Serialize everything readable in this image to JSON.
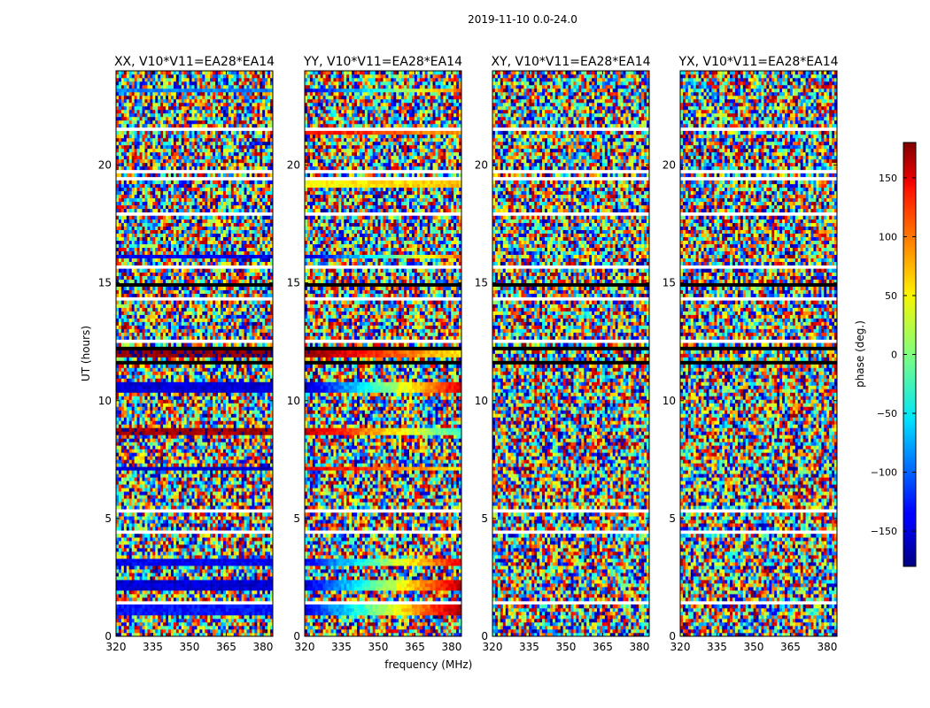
{
  "figure": {
    "suptitle": "2019-11-10 0.0-24.0"
  },
  "chart_data": [
    {
      "type": "heatmap",
      "title": "XX, V10*V11=EA28*EA14",
      "xlabel": "",
      "ylabel": "UT (hours)",
      "xlim": [
        320,
        384
      ],
      "ylim": [
        0,
        24
      ],
      "xticks": [
        "320",
        "335",
        "350",
        "365",
        "380"
      ],
      "yticks": [
        "0",
        "5",
        "10",
        "15",
        "20"
      ],
      "description_pattern": "noise",
      "coherent_bands": [
        {
          "t0": 0.9,
          "t1": 1.35,
          "phase": -130,
          "slope": 0
        },
        {
          "t0": 1.9,
          "t1": 2.4,
          "phase": -150,
          "slope": 0
        },
        {
          "t0": 3.05,
          "t1": 3.35,
          "phase": -140,
          "slope": 0
        },
        {
          "t0": 7.0,
          "t1": 7.25,
          "phase": -150,
          "slope": 0
        },
        {
          "t0": 8.6,
          "t1": 8.85,
          "phase": 170,
          "slope": 0
        },
        {
          "t0": 10.4,
          "t1": 10.75,
          "phase": -150,
          "slope": 0
        },
        {
          "t0": 11.9,
          "t1": 12.1,
          "phase": 175,
          "slope": 0
        },
        {
          "t0": 16.1,
          "t1": 16.25,
          "phase": -140,
          "slope": 0
        },
        {
          "t0": 23.1,
          "t1": 23.25,
          "phase": -90,
          "slope": 0
        }
      ]
    },
    {
      "type": "heatmap",
      "title": "YY, V10*V11=EA28*EA14",
      "xlabel": "frequency (MHz)",
      "ylabel": "",
      "xlim": [
        320,
        384
      ],
      "ylim": [
        0,
        24
      ],
      "xticks": [
        "320",
        "335",
        "350",
        "365",
        "380"
      ],
      "yticks": [
        "0",
        "5",
        "10",
        "15",
        "20"
      ],
      "description_pattern": "noise",
      "coherent_bands": [
        {
          "t0": 0.9,
          "t1": 1.35,
          "phase": -140,
          "slope": 5
        },
        {
          "t0": 1.9,
          "t1": 2.4,
          "phase": -150,
          "slope": 5
        },
        {
          "t0": 3.05,
          "t1": 3.35,
          "phase": -140,
          "slope": 4.5
        },
        {
          "t0": 7.0,
          "t1": 7.25,
          "phase": 150,
          "slope": -1.5
        },
        {
          "t0": 8.6,
          "t1": 8.85,
          "phase": 160,
          "slope": -3
        },
        {
          "t0": 10.4,
          "t1": 10.75,
          "phase": -160,
          "slope": 5
        },
        {
          "t0": 11.9,
          "t1": 12.1,
          "phase": 175,
          "slope": -2
        },
        {
          "t0": 16.1,
          "t1": 16.25,
          "phase": -150,
          "slope": 4
        },
        {
          "t0": 19.1,
          "t1": 19.4,
          "phase": 40,
          "slope": 0.5
        },
        {
          "t0": 21.3,
          "t1": 21.45,
          "phase": 140,
          "slope": -1
        },
        {
          "t0": 23.1,
          "t1": 23.25,
          "phase": -150,
          "slope": 4
        }
      ]
    },
    {
      "type": "heatmap",
      "title": "XY, V10*V11=EA28*EA14",
      "xlabel": "",
      "ylabel": "",
      "xlim": [
        320,
        384
      ],
      "ylim": [
        0,
        24
      ],
      "xticks": [
        "320",
        "335",
        "350",
        "365",
        "380"
      ],
      "yticks": [
        "0",
        "5",
        "10",
        "15",
        "20"
      ],
      "description_pattern": "noise",
      "coherent_bands": []
    },
    {
      "type": "heatmap",
      "title": "YX, V10*V11=EA28*EA14",
      "xlabel": "",
      "ylabel": "",
      "xlim": [
        320,
        384
      ],
      "ylim": [
        0,
        24
      ],
      "xticks": [
        "320",
        "335",
        "350",
        "365",
        "380"
      ],
      "yticks": [
        "0",
        "5",
        "10",
        "15",
        "20"
      ],
      "description_pattern": "noise",
      "coherent_bands": []
    }
  ],
  "colorbar": {
    "label": "phase (deg.)",
    "range": [
      -180,
      180
    ],
    "ticks": [
      "150",
      "100",
      "50",
      "0",
      "−50",
      "−100",
      "−150"
    ],
    "tick_values": [
      150,
      100,
      50,
      0,
      -50,
      -100,
      -150
    ],
    "colormap": "jet"
  },
  "shared": {
    "gaps": [
      {
        "t0": 0.25,
        "t1": 0.3
      },
      {
        "t0": 0.55,
        "t1": 0.6
      },
      {
        "t0": 1.4,
        "t1": 1.5
      },
      {
        "t0": 2.95,
        "t1": 3.0
      },
      {
        "t0": 4.4,
        "t1": 4.45
      },
      {
        "t0": 5.3,
        "t1": 5.4
      },
      {
        "t0": 5.95,
        "t1": 6.0
      },
      {
        "t0": 6.45,
        "t1": 6.5
      },
      {
        "t0": 7.3,
        "t1": 7.4
      },
      {
        "t0": 8.35,
        "t1": 8.4
      },
      {
        "t0": 9.15,
        "t1": 9.2
      },
      {
        "t0": 11.35,
        "t1": 11.4
      },
      {
        "t0": 12.45,
        "t1": 12.55
      },
      {
        "t0": 13.45,
        "t1": 13.5
      },
      {
        "t0": 14.3,
        "t1": 14.35
      },
      {
        "t0": 15.65,
        "t1": 15.7
      },
      {
        "t0": 17.85,
        "t1": 17.95
      },
      {
        "t0": 18.15,
        "t1": 18.2
      },
      {
        "t0": 19.35,
        "t1": 19.45
      },
      {
        "t0": 19.7,
        "t1": 19.75
      },
      {
        "t0": 21.5,
        "t1": 21.55
      },
      {
        "t0": 23.35,
        "t1": 23.4
      }
    ],
    "dark_rows": [
      {
        "t0": 9.55,
        "t1": 9.65
      },
      {
        "t0": 11.55,
        "t1": 11.65
      },
      {
        "t0": 12.2,
        "t1": 12.25
      },
      {
        "t0": 13.75,
        "t1": 13.8
      },
      {
        "t0": 14.9,
        "t1": 14.95
      },
      {
        "t0": 21.25,
        "t1": 21.3
      }
    ]
  }
}
